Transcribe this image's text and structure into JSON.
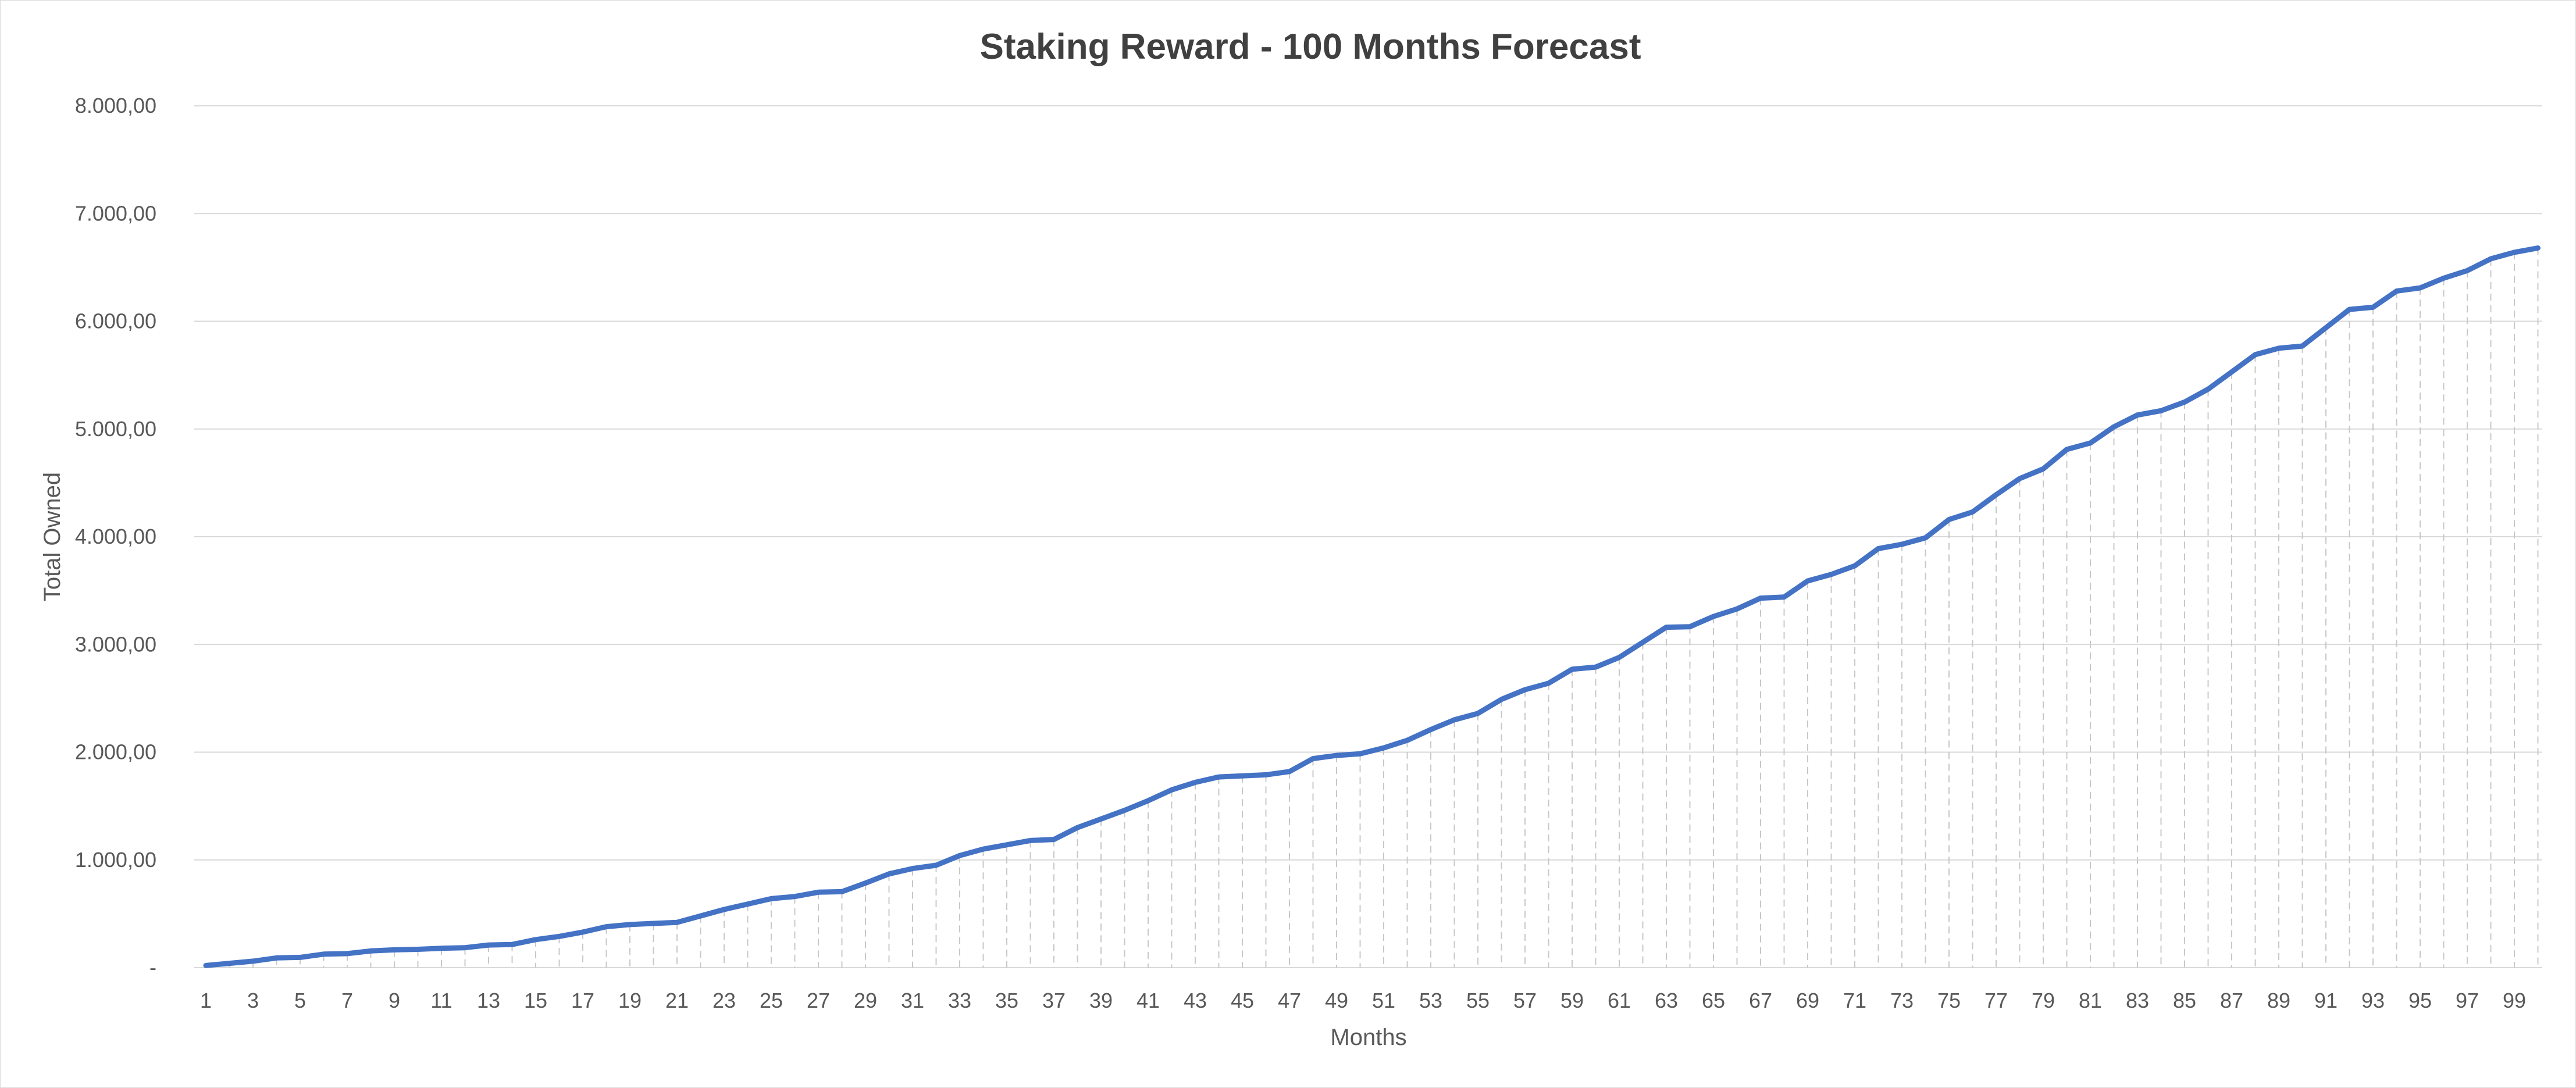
{
  "chart_data": {
    "type": "line",
    "title": "Staking Reward - 100 Months Forecast",
    "xlabel": "Months",
    "ylabel": "Total Owned",
    "ylim": [
      0,
      8000
    ],
    "y_ticks": [
      {
        "value": 0,
        "label": "-"
      },
      {
        "value": 1000,
        "label": "1.000,00"
      },
      {
        "value": 2000,
        "label": "2.000,00"
      },
      {
        "value": 3000,
        "label": "3.000,00"
      },
      {
        "value": 4000,
        "label": "4.000,00"
      },
      {
        "value": 5000,
        "label": "5.000,00"
      },
      {
        "value": 6000,
        "label": "6.000,00"
      },
      {
        "value": 7000,
        "label": "7.000,00"
      },
      {
        "value": 8000,
        "label": "8.000,00"
      }
    ],
    "x_tick_labels": [
      "1",
      "3",
      "5",
      "7",
      "9",
      "11",
      "13",
      "15",
      "17",
      "19",
      "21",
      "23",
      "25",
      "27",
      "29",
      "31",
      "33",
      "35",
      "37",
      "39",
      "41",
      "43",
      "45",
      "47",
      "49",
      "51",
      "53",
      "55",
      "57",
      "59",
      "61",
      "63",
      "65",
      "67",
      "69",
      "71",
      "73",
      "75",
      "77",
      "79",
      "81",
      "83",
      "85",
      "87",
      "89",
      "91",
      "93",
      "95",
      "97",
      "99"
    ],
    "grid": true,
    "drop_lines": true,
    "legend": "none",
    "line_color": "#4472c4",
    "x": [
      1,
      2,
      3,
      4,
      5,
      6,
      7,
      8,
      9,
      10,
      11,
      12,
      13,
      14,
      15,
      16,
      17,
      18,
      19,
      20,
      21,
      22,
      23,
      24,
      25,
      26,
      27,
      28,
      29,
      30,
      31,
      32,
      33,
      34,
      35,
      36,
      37,
      38,
      39,
      40,
      41,
      42,
      43,
      44,
      45,
      46,
      47,
      48,
      49,
      50,
      51,
      52,
      53,
      54,
      55,
      56,
      57,
      58,
      59,
      60,
      61,
      62,
      63,
      64,
      65,
      66,
      67,
      68,
      69,
      70,
      71,
      72,
      73,
      74,
      75,
      76,
      77,
      78,
      79,
      80,
      81,
      82,
      83,
      84,
      85,
      86,
      87,
      88,
      89,
      90,
      91,
      92,
      93,
      94,
      95,
      96,
      97,
      98,
      99,
      100
    ],
    "series": [
      {
        "values": [
          20,
          40,
          60,
          90,
          95,
          125,
          130,
          155,
          165,
          170,
          180,
          185,
          210,
          215,
          260,
          290,
          330,
          380,
          400,
          410,
          420,
          480,
          540,
          590,
          640,
          660,
          700,
          705,
          785,
          870,
          920,
          950,
          1040,
          1100,
          1140,
          1180,
          1190,
          1300,
          1380,
          1460,
          1550,
          1650,
          1720,
          1770,
          1780,
          1790,
          1820,
          1940,
          1970,
          1985,
          2040,
          2110,
          2210,
          2300,
          2360,
          2490,
          2580,
          2640,
          2770,
          2790,
          2880,
          3020,
          3160,
          3165,
          3260,
          3330,
          3430,
          3440,
          3590,
          3650,
          3730,
          3890,
          3930,
          3990,
          4160,
          4230,
          4390,
          4540,
          4630,
          4810,
          4870,
          5020,
          5130,
          5170,
          5250,
          5370,
          5530,
          5690,
          5750,
          5770,
          5940,
          6110,
          6130,
          6280,
          6310,
          6400,
          6470,
          6580,
          6640,
          6680
        ]
      }
    ]
  }
}
